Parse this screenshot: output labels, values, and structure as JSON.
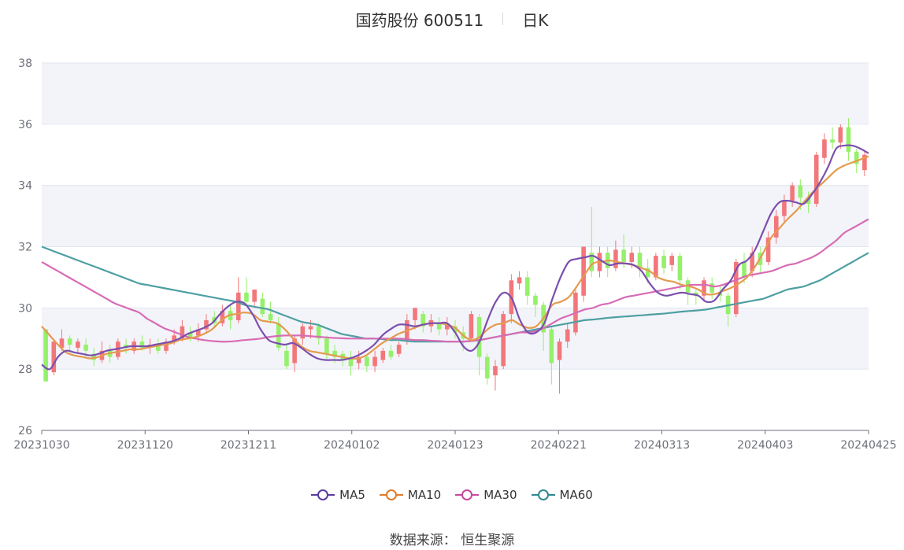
{
  "title": {
    "name": "国药股份 600511",
    "period": "日K"
  },
  "source": "数据来源：  恒生聚源",
  "colors": {
    "up": "#f2777a",
    "down": "#95f06a",
    "ma5": "#7b4fae",
    "ma10": "#e49a4f",
    "ma30": "#d86cb5",
    "ma60": "#4e9fa2",
    "band": "#f3f4f9",
    "grid": "#e0e6f1",
    "axis": "#6e7079"
  },
  "chart_data": {
    "type": "candlestick",
    "ylim": [
      26,
      38
    ],
    "yticks": [
      26,
      28,
      30,
      32,
      34,
      36,
      38
    ],
    "x_labels": [
      "20231030",
      "20231120",
      "20231211",
      "20240102",
      "20240123",
      "20240221",
      "20240313",
      "20240403",
      "20240425"
    ],
    "legend": [
      {
        "name": "MA5",
        "color": "#5b3c9e"
      },
      {
        "name": "MA10",
        "color": "#e07b28"
      },
      {
        "name": "MA30",
        "color": "#c8489e"
      },
      {
        "name": "MA60",
        "color": "#2f8a8c"
      }
    ],
    "ma5": [
      28.15,
      28.0,
      28.4,
      28.6,
      28.55,
      28.5,
      28.45,
      28.5,
      28.6,
      28.65,
      28.7,
      28.75,
      28.75,
      28.75,
      28.8,
      28.85,
      28.9,
      29.0,
      29.15,
      29.25,
      29.35,
      29.5,
      29.8,
      30.05,
      30.2,
      30.15,
      29.8,
      29.3,
      28.95,
      28.85,
      28.8,
      28.85,
      28.7,
      28.5,
      28.35,
      28.3,
      28.3,
      28.3,
      28.35,
      28.45,
      28.6,
      28.8,
      29.1,
      29.3,
      29.45,
      29.45,
      29.4,
      29.45,
      29.5,
      29.5,
      29.5,
      29.2,
      28.75,
      28.6,
      28.9,
      29.6,
      30.2,
      30.5,
      30.3,
      29.6,
      29.2,
      29.2,
      29.5,
      30.3,
      31.0,
      31.5,
      31.6,
      31.65,
      31.7,
      31.55,
      31.4,
      31.45,
      31.45,
      31.4,
      31.2,
      30.8,
      30.5,
      30.4,
      30.45,
      30.5,
      30.45,
      30.4,
      30.2,
      30.25,
      30.6,
      30.9,
      31.4,
      31.55,
      31.9,
      32.5,
      33.1,
      33.45,
      33.5,
      33.45,
      33.4,
      33.7,
      34.1,
      34.6,
      35.2,
      35.3,
      35.3,
      35.2,
      35.05
    ],
    "ma10": [
      29.4,
      29.1,
      28.8,
      28.55,
      28.45,
      28.4,
      28.35,
      28.4,
      28.5,
      28.55,
      28.6,
      28.65,
      28.65,
      28.7,
      28.75,
      28.8,
      28.85,
      28.95,
      29.0,
      29.05,
      29.15,
      29.3,
      29.55,
      29.75,
      29.8,
      29.85,
      29.8,
      29.6,
      29.55,
      29.5,
      29.3,
      29.0,
      28.75,
      28.6,
      28.55,
      28.5,
      28.45,
      28.4,
      28.35,
      28.35,
      28.45,
      28.65,
      28.85,
      29.0,
      29.15,
      29.25,
      29.35,
      29.45,
      29.5,
      29.5,
      29.45,
      29.35,
      29.1,
      28.95,
      29.05,
      29.3,
      29.45,
      29.5,
      29.6,
      29.45,
      29.35,
      29.4,
      29.7,
      30.1,
      30.2,
      30.35,
      30.7,
      31.1,
      31.45,
      31.5,
      31.55,
      31.5,
      31.45,
      31.4,
      31.3,
      31.2,
      31.0,
      30.9,
      30.85,
      30.75,
      30.7,
      30.6,
      30.45,
      30.45,
      30.55,
      30.65,
      30.8,
      31.0,
      31.35,
      31.8,
      32.3,
      32.6,
      32.9,
      33.15,
      33.45,
      33.75,
      34.0,
      34.25,
      34.5,
      34.65,
      34.75,
      34.85,
      34.95
    ],
    "ma30": [
      31.5,
      31.35,
      31.2,
      31.05,
      30.9,
      30.75,
      30.6,
      30.45,
      30.3,
      30.15,
      30.05,
      29.95,
      29.85,
      29.65,
      29.5,
      29.35,
      29.25,
      29.15,
      29.05,
      29.0,
      28.95,
      28.92,
      28.9,
      28.9,
      28.92,
      28.95,
      28.97,
      29.0,
      29.05,
      29.08,
      29.1,
      29.1,
      29.1,
      29.08,
      29.06,
      29.04,
      29.02,
      29.01,
      29.0,
      29.0,
      29.0,
      29.0,
      29.0,
      29.0,
      29.0,
      28.98,
      28.95,
      28.95,
      28.93,
      28.92,
      28.9,
      28.9,
      28.9,
      28.92,
      28.95,
      29.0,
      29.05,
      29.1,
      29.15,
      29.2,
      29.2,
      29.25,
      29.35,
      29.5,
      29.65,
      29.75,
      29.85,
      29.95,
      30.0,
      30.1,
      30.15,
      30.25,
      30.35,
      30.4,
      30.45,
      30.5,
      30.55,
      30.6,
      30.65,
      30.7,
      30.75,
      30.75,
      30.75,
      30.7,
      30.75,
      30.85,
      30.95,
      31.05,
      31.1,
      31.15,
      31.2,
      31.3,
      31.4,
      31.45,
      31.55,
      31.65,
      31.8,
      32.0,
      32.2,
      32.45,
      32.6,
      32.75,
      32.9
    ],
    "ma60": [
      32.0,
      31.9,
      31.8,
      31.7,
      31.6,
      31.5,
      31.4,
      31.3,
      31.2,
      31.1,
      31.0,
      30.9,
      30.8,
      30.75,
      30.7,
      30.65,
      30.6,
      30.55,
      30.5,
      30.45,
      30.4,
      30.35,
      30.3,
      30.25,
      30.2,
      30.1,
      30.05,
      30.0,
      29.95,
      29.85,
      29.75,
      29.65,
      29.55,
      29.5,
      29.45,
      29.35,
      29.25,
      29.15,
      29.1,
      29.05,
      29.0,
      29.0,
      28.98,
      28.95,
      28.95,
      28.92,
      28.9,
      28.9,
      28.9,
      28.9,
      28.9,
      28.9,
      28.9,
      28.92,
      28.95,
      29.0,
      29.05,
      29.1,
      29.15,
      29.2,
      29.25,
      29.3,
      29.35,
      29.4,
      29.45,
      29.5,
      29.55,
      29.6,
      29.62,
      29.65,
      29.68,
      29.7,
      29.72,
      29.74,
      29.76,
      29.78,
      29.8,
      29.82,
      29.85,
      29.88,
      29.9,
      29.92,
      29.95,
      30.0,
      30.05,
      30.1,
      30.15,
      30.2,
      30.25,
      30.3,
      30.4,
      30.5,
      30.6,
      30.65,
      30.7,
      30.8,
      30.9,
      31.05,
      31.2,
      31.35,
      31.5,
      31.65,
      31.8
    ],
    "candles": [
      [
        29.3,
        27.6,
        29.3,
        27.6
      ],
      [
        27.9,
        28.9,
        28.7,
        27.8
      ],
      [
        28.7,
        29.0,
        29.3,
        28.6
      ],
      [
        29.0,
        28.8,
        29.1,
        28.5
      ],
      [
        28.7,
        28.9,
        29.0,
        28.5
      ],
      [
        28.8,
        28.6,
        29.0,
        28.4
      ],
      [
        28.5,
        28.3,
        28.7,
        28.1
      ],
      [
        28.3,
        28.6,
        28.9,
        28.2
      ],
      [
        28.6,
        28.4,
        28.8,
        28.2
      ],
      [
        28.4,
        28.9,
        29.0,
        28.3
      ],
      [
        28.8,
        28.7,
        29.0,
        28.5
      ],
      [
        28.6,
        28.9,
        29.0,
        28.5
      ],
      [
        28.9,
        28.7,
        29.1,
        28.6
      ],
      [
        28.7,
        28.8,
        29.0,
        28.5
      ],
      [
        28.8,
        28.6,
        29.0,
        28.5
      ],
      [
        28.6,
        28.9,
        29.0,
        28.5
      ],
      [
        28.9,
        29.1,
        29.3,
        28.8
      ],
      [
        29.0,
        29.4,
        29.6,
        28.9
      ],
      [
        29.2,
        29.0,
        29.4,
        28.9
      ],
      [
        29.1,
        29.3,
        29.5,
        28.9
      ],
      [
        29.3,
        29.6,
        29.8,
        29.2
      ],
      [
        29.7,
        29.5,
        29.9,
        29.4
      ],
      [
        29.5,
        29.9,
        30.1,
        29.4
      ],
      [
        29.9,
        29.6,
        30.1,
        29.3
      ],
      [
        29.6,
        30.5,
        31.0,
        29.5
      ],
      [
        30.5,
        30.2,
        31.0,
        30.1
      ],
      [
        30.2,
        30.6,
        30.6,
        30.0
      ],
      [
        30.3,
        29.8,
        30.5,
        29.7
      ],
      [
        29.8,
        29.6,
        30.2,
        29.5
      ],
      [
        29.5,
        28.7,
        29.7,
        28.6
      ],
      [
        28.6,
        28.1,
        28.8,
        28.0
      ],
      [
        28.2,
        29.0,
        29.1,
        27.9
      ],
      [
        29.0,
        29.4,
        29.5,
        28.8
      ],
      [
        29.3,
        29.4,
        29.6,
        29.0
      ],
      [
        29.4,
        29.0,
        29.5,
        28.8
      ],
      [
        29.0,
        28.5,
        29.1,
        28.3
      ],
      [
        28.6,
        28.4,
        28.8,
        28.2
      ],
      [
        28.5,
        28.3,
        28.6,
        28.1
      ],
      [
        28.4,
        28.1,
        28.6,
        27.8
      ],
      [
        28.2,
        28.4,
        28.6,
        28.0
      ],
      [
        28.4,
        28.1,
        28.5,
        27.9
      ],
      [
        28.1,
        28.4,
        28.6,
        27.9
      ],
      [
        28.3,
        28.6,
        28.7,
        28.2
      ],
      [
        28.6,
        28.4,
        28.8,
        28.3
      ],
      [
        28.5,
        28.8,
        28.9,
        28.4
      ],
      [
        28.9,
        29.6,
        29.8,
        28.8
      ],
      [
        29.6,
        30.0,
        30.0,
        29.3
      ],
      [
        29.8,
        29.4,
        29.9,
        29.2
      ],
      [
        29.4,
        29.6,
        29.8,
        29.2
      ],
      [
        29.5,
        29.3,
        29.7,
        29.1
      ],
      [
        29.3,
        29.5,
        29.7,
        29.1
      ],
      [
        29.4,
        29.2,
        29.6,
        29.0
      ],
      [
        29.2,
        29.0,
        29.4,
        28.6
      ],
      [
        29.0,
        29.8,
        29.9,
        28.9
      ],
      [
        29.7,
        28.4,
        29.8,
        27.8
      ],
      [
        28.4,
        27.7,
        28.5,
        27.5
      ],
      [
        27.8,
        28.1,
        28.3,
        27.3
      ],
      [
        28.1,
        29.8,
        29.9,
        28.0
      ],
      [
        29.8,
        30.9,
        31.1,
        29.5
      ],
      [
        30.8,
        31.0,
        31.2,
        30.6
      ],
      [
        31.0,
        30.4,
        31.2,
        30.1
      ],
      [
        30.4,
        30.1,
        30.5,
        29.7
      ],
      [
        30.1,
        29.2,
        30.2,
        28.6
      ],
      [
        29.3,
        28.2,
        29.4,
        27.5
      ],
      [
        28.3,
        28.9,
        29.0,
        27.2
      ],
      [
        28.9,
        29.3,
        29.5,
        28.7
      ],
      [
        29.2,
        30.5,
        30.6,
        29.1
      ],
      [
        30.4,
        32.0,
        32.0,
        30.2
      ],
      [
        31.8,
        31.2,
        33.3,
        31.0
      ],
      [
        31.2,
        31.8,
        32.0,
        31.0
      ],
      [
        31.8,
        31.3,
        32.0,
        31.0
      ],
      [
        31.3,
        31.9,
        32.2,
        31.2
      ],
      [
        31.9,
        31.5,
        32.4,
        31.3
      ],
      [
        31.5,
        31.8,
        32.0,
        31.3
      ],
      [
        31.8,
        31.3,
        32.0,
        31.0
      ],
      [
        31.3,
        31.0,
        31.6,
        30.8
      ],
      [
        31.0,
        31.7,
        31.8,
        30.9
      ],
      [
        31.7,
        31.3,
        31.9,
        31.1
      ],
      [
        31.4,
        31.7,
        31.8,
        31.2
      ],
      [
        31.7,
        30.9,
        31.8,
        30.6
      ],
      [
        30.9,
        30.5,
        31.0,
        30.1
      ],
      [
        30.5,
        30.4,
        30.6,
        30.1
      ],
      [
        30.4,
        30.9,
        31.0,
        30.2
      ],
      [
        30.8,
        30.5,
        31.0,
        30.3
      ],
      [
        30.5,
        30.4,
        30.7,
        30.2
      ],
      [
        30.4,
        29.8,
        30.5,
        29.4
      ],
      [
        29.8,
        31.5,
        31.6,
        29.7
      ],
      [
        31.5,
        31.0,
        31.8,
        30.8
      ],
      [
        31.2,
        31.8,
        32.0,
        31.0
      ],
      [
        31.8,
        31.4,
        32.0,
        31.1
      ],
      [
        31.5,
        32.3,
        32.5,
        31.4
      ],
      [
        32.3,
        33.0,
        33.2,
        32.1
      ],
      [
        33.0,
        33.5,
        33.7,
        32.8
      ],
      [
        33.5,
        34.0,
        34.1,
        33.3
      ],
      [
        34.0,
        33.6,
        34.2,
        33.2
      ],
      [
        33.6,
        33.4,
        33.8,
        33.1
      ],
      [
        33.4,
        35.0,
        35.1,
        33.3
      ],
      [
        34.9,
        35.5,
        35.7,
        34.7
      ],
      [
        35.5,
        35.4,
        35.9,
        35.2
      ],
      [
        35.4,
        35.9,
        36.0,
        35.2
      ],
      [
        35.9,
        35.1,
        36.2,
        34.8
      ],
      [
        35.1,
        34.7,
        35.2,
        34.4
      ],
      [
        34.5,
        35.0,
        35.1,
        34.3
      ]
    ]
  }
}
